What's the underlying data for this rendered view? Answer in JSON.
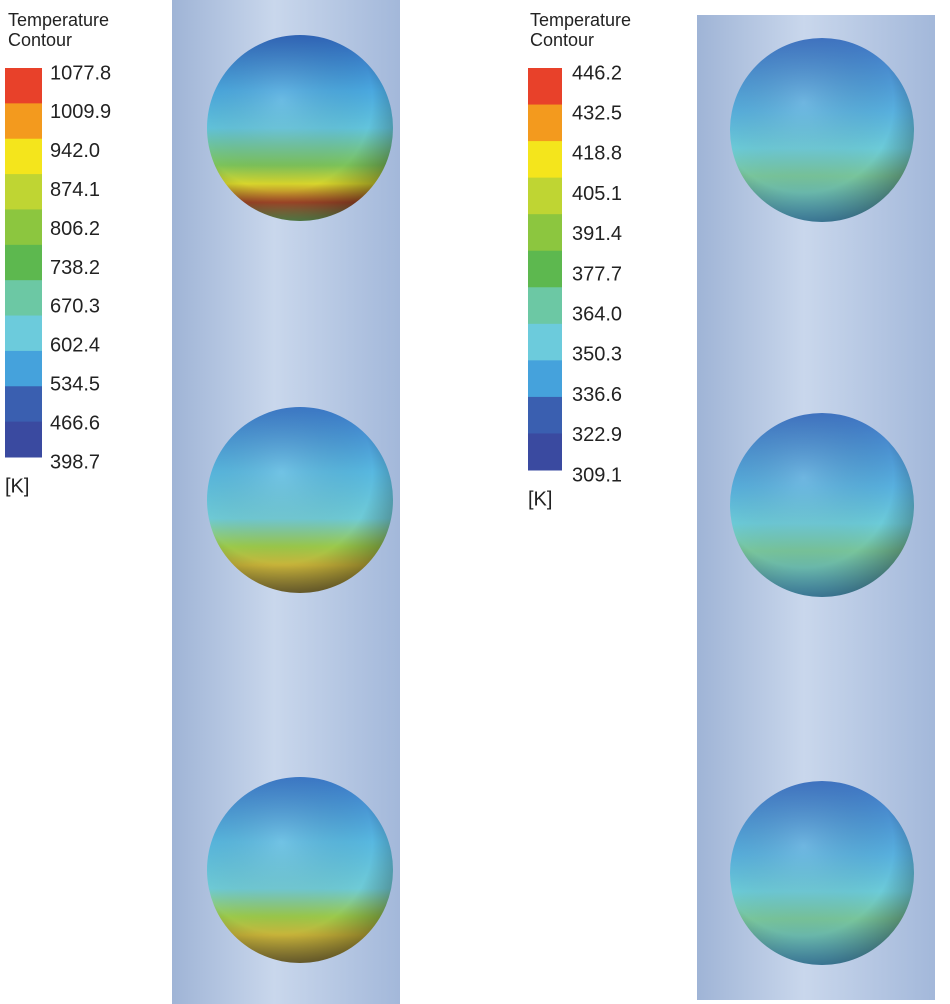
{
  "legends": [
    {
      "title": [
        "Temperature",
        "Contour"
      ],
      "ticks": [
        "1077.8",
        "1009.9",
        "942.0",
        "874.1",
        "806.2",
        "738.2",
        "670.3",
        "602.4",
        "534.5",
        "466.6",
        "398.7"
      ],
      "unit": "[K]"
    },
    {
      "title": [
        "Temperature",
        "Contour"
      ],
      "ticks": [
        "446.2",
        "432.5",
        "418.8",
        "405.1",
        "391.4",
        "377.7",
        "364.0",
        "350.3",
        "336.6",
        "322.9",
        "309.1"
      ],
      "unit": "[K]"
    }
  ]
}
